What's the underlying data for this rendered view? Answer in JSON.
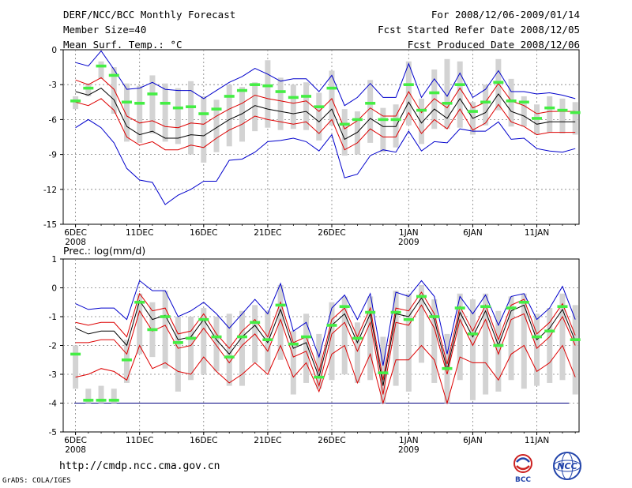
{
  "header": {
    "title": "DERF/NCC/BCC Monthly Forecast",
    "member_size": "Member Size=40",
    "variable_label": "Mean Surf. Temp.: °C",
    "forecast_range": "For 2008/12/06-2009/01/14",
    "started_refer": "Fcst Started Refer Date 2008/12/05",
    "produced_date": "Fcst Produced Date 2008/12/06"
  },
  "footer": {
    "url": "http://cmdp.ncc.cma.gov.cn",
    "credit": "GrADS: COLA/IGES",
    "logo_bcc": "BCC",
    "logo_ncc": "NCC"
  },
  "colors": {
    "box": "#d3d3d3",
    "green": "#44ee44",
    "black": "#000000",
    "red": "#dd0000",
    "blue": "#0000cc",
    "grid": "#808080"
  },
  "chart_data": [
    {
      "type": "line",
      "title": "Mean Surf. Temp.: °C",
      "ylabel": "°C",
      "ylim": [
        -15,
        0
      ],
      "yticks": [
        0,
        -3,
        -6,
        -9,
        -12,
        -15
      ],
      "xtick_labels": [
        {
          "day": 0,
          "label": "6DEC",
          "sub": "2008"
        },
        {
          "day": 5,
          "label": "11DEC",
          "sub": ""
        },
        {
          "day": 10,
          "label": "16DEC",
          "sub": ""
        },
        {
          "day": 15,
          "label": "21DEC",
          "sub": ""
        },
        {
          "day": 20,
          "label": "26DEC",
          "sub": ""
        },
        {
          "day": 26,
          "label": "1JAN",
          "sub": "2009"
        },
        {
          "day": 31,
          "label": "6JAN",
          "sub": ""
        },
        {
          "day": 36,
          "label": "11JAN",
          "sub": ""
        }
      ],
      "x_start_day": 0,
      "observed_green": [
        -4.4,
        -3.3,
        -1.4,
        -2.2,
        -4.5,
        -4.6,
        -3.8,
        -4.6,
        -5.0,
        -4.9,
        -5.5,
        -5.1,
        -4.0,
        -3.5,
        -3.0,
        -3.1,
        -3.6,
        -4.1,
        -4.0,
        -4.9,
        -3.3,
        -6.4,
        -6.0,
        -4.6,
        -6.0,
        -6.0,
        -3.0,
        -5.2,
        -3.7,
        -4.6,
        -3.0,
        -5.3,
        -4.5,
        -2.8,
        -4.4,
        -4.5,
        -5.9,
        -5.0,
        -5.2,
        -5.4
      ],
      "box_high": [
        -4.0,
        -2.9,
        -1.0,
        -1.5,
        -2.9,
        -3.1,
        -2.2,
        -2.9,
        -3.3,
        -2.7,
        -4.0,
        -4.3,
        -3.0,
        -3.2,
        -2.8,
        -0.9,
        -2.4,
        -3.0,
        -2.8,
        -3.7,
        -1.8,
        -5.1,
        -5.3,
        -2.6,
        -5.0,
        -4.7,
        -1.0,
        -4.2,
        -1.7,
        -0.8,
        -1.0,
        -4.5,
        -3.0,
        -0.8,
        -2.5,
        -4.0,
        -4.7,
        -4.0,
        -4.2,
        -4.5
      ],
      "box_low": [
        -5.1,
        -4.0,
        -2.5,
        -5.5,
        -7.9,
        -8.0,
        -7.2,
        -7.9,
        -8.1,
        -9.0,
        -9.7,
        -8.8,
        -8.3,
        -7.9,
        -7.0,
        -6.7,
        -6.9,
        -6.8,
        -6.9,
        -7.8,
        -6.5,
        -9.1,
        -9.0,
        -8.0,
        -8.8,
        -8.4,
        -6.5,
        -8.1,
        -6.8,
        -6.8,
        -6.7,
        -7.3,
        -6.5,
        -5.2,
        -6.6,
        -6.6,
        -7.3,
        -7.1,
        -7.2,
        -7.3
      ],
      "series": [
        {
          "name": "ensemble mean",
          "color": "black",
          "values": [
            -3.6,
            -3.9,
            -3.3,
            -4.3,
            -6.6,
            -7.3,
            -7.0,
            -7.6,
            -7.6,
            -7.3,
            -7.4,
            -6.7,
            -6.0,
            -5.5,
            -4.8,
            -5.1,
            -5.3,
            -5.5,
            -5.3,
            -6.2,
            -5.1,
            -7.7,
            -7.1,
            -5.9,
            -6.6,
            -6.6,
            -4.5,
            -6.3,
            -5.1,
            -5.9,
            -4.2,
            -5.9,
            -5.4,
            -3.8,
            -5.3,
            -5.7,
            -6.4,
            -6.2,
            -6.2,
            -6.2
          ]
        },
        {
          "name": "mean + 1 std",
          "color": "red",
          "values": [
            -2.6,
            -3.0,
            -2.4,
            -3.4,
            -5.7,
            -6.3,
            -6.1,
            -6.6,
            -6.7,
            -6.3,
            -6.4,
            -5.7,
            -5.1,
            -4.6,
            -3.9,
            -4.2,
            -4.4,
            -4.6,
            -4.4,
            -5.3,
            -4.2,
            -6.8,
            -6.1,
            -5.0,
            -5.7,
            -5.7,
            -3.6,
            -5.4,
            -4.2,
            -5.0,
            -3.3,
            -5.0,
            -4.5,
            -2.9,
            -4.4,
            -4.8,
            -5.5,
            -5.3,
            -5.3,
            -5.3
          ]
        },
        {
          "name": "mean - 1 std",
          "color": "red",
          "values": [
            -4.5,
            -4.8,
            -4.2,
            -5.2,
            -7.5,
            -8.2,
            -7.9,
            -8.6,
            -8.6,
            -8.2,
            -8.4,
            -7.6,
            -6.9,
            -6.4,
            -5.7,
            -6.0,
            -6.2,
            -6.4,
            -6.2,
            -7.2,
            -6.0,
            -8.6,
            -8.0,
            -6.8,
            -7.5,
            -7.5,
            -5.4,
            -7.2,
            -6.0,
            -6.8,
            -5.1,
            -6.9,
            -6.3,
            -4.7,
            -6.2,
            -6.6,
            -7.3,
            -7.1,
            -7.1,
            -7.1
          ]
        },
        {
          "name": "mean + 2 std",
          "color": "blue",
          "values": [
            -1.1,
            -1.4,
            -0.1,
            -1.7,
            -3.4,
            -3.3,
            -2.8,
            -3.4,
            -3.5,
            -3.5,
            -4.2,
            -3.5,
            -2.8,
            -2.3,
            -1.6,
            -2.1,
            -2.7,
            -2.5,
            -2.5,
            -3.6,
            -2.2,
            -4.8,
            -4.1,
            -2.9,
            -4.1,
            -4.1,
            -1.2,
            -4.1,
            -2.5,
            -4.0,
            -2.0,
            -4.1,
            -3.4,
            -1.8,
            -3.6,
            -3.6,
            -3.8,
            -3.7,
            -3.9,
            -4.2
          ]
        },
        {
          "name": "mean - 2 std",
          "color": "blue",
          "values": [
            -6.7,
            -6.0,
            -6.7,
            -8.0,
            -10.2,
            -11.2,
            -11.4,
            -13.3,
            -12.5,
            -12.0,
            -11.3,
            -11.3,
            -9.5,
            -9.4,
            -8.8,
            -7.9,
            -7.8,
            -7.6,
            -7.9,
            -8.7,
            -7.3,
            -11.0,
            -10.7,
            -9.1,
            -8.6,
            -8.8,
            -7.0,
            -8.7,
            -7.9,
            -8.0,
            -6.8,
            -7.0,
            -7.0,
            -6.2,
            -7.7,
            -7.6,
            -8.5,
            -8.7,
            -8.8,
            -8.5
          ]
        }
      ]
    },
    {
      "type": "line",
      "title": "Prec.: log(mm/d)",
      "ylabel": "log(mm/d)",
      "ylim": [
        -5,
        1
      ],
      "yticks": [
        1,
        0,
        -1,
        -2,
        -3,
        -4,
        -5
      ],
      "xtick_labels": [
        {
          "day": 0,
          "label": "6DEC",
          "sub": "2008"
        },
        {
          "day": 5,
          "label": "11DEC",
          "sub": ""
        },
        {
          "day": 10,
          "label": "16DEC",
          "sub": ""
        },
        {
          "day": 15,
          "label": "21DEC",
          "sub": ""
        },
        {
          "day": 20,
          "label": "26DEC",
          "sub": ""
        },
        {
          "day": 26,
          "label": "1JAN",
          "sub": "2009"
        },
        {
          "day": 31,
          "label": "6JAN",
          "sub": ""
        },
        {
          "day": 36,
          "label": "11JAN",
          "sub": ""
        }
      ],
      "x_start_day": 0,
      "baseline": -4,
      "observed_green": [
        -2.3,
        -3.9,
        -3.9,
        -3.9,
        -2.5,
        -0.5,
        -1.45,
        -1.0,
        -1.9,
        -1.75,
        -1.1,
        -1.7,
        -2.4,
        -1.7,
        -1.2,
        -1.8,
        -0.6,
        -1.95,
        -1.7,
        -3.1,
        -1.3,
        -0.65,
        -1.75,
        -0.85,
        -2.95,
        -0.85,
        -1.1,
        -0.3,
        -1.0,
        -2.8,
        -0.7,
        -1.6,
        -0.65,
        -2.0,
        -0.7,
        -0.5,
        -1.7,
        -1.5,
        -0.65,
        -1.8
      ],
      "box_high": [
        -2.0,
        -3.5,
        -3.4,
        -3.5,
        -1.8,
        -0.2,
        -0.5,
        -0.1,
        -1.0,
        -1.0,
        -0.7,
        -1.0,
        -0.9,
        -0.8,
        -0.6,
        -0.8,
        0.1,
        -1.5,
        -0.9,
        -1.6,
        -0.5,
        -0.3,
        -1.2,
        -0.3,
        -1.7,
        -0.1,
        -0.2,
        0.1,
        -0.4,
        -1.6,
        -0.2,
        -0.4,
        -0.2,
        -0.8,
        -0.3,
        -0.2,
        -0.9,
        -0.7,
        -0.2,
        -0.6
      ],
      "box_low": [
        -3.5,
        -4.0,
        -4.0,
        -4.0,
        -3.3,
        -2.3,
        -2.4,
        -2.8,
        -3.6,
        -3.2,
        -3.0,
        -2.9,
        -3.4,
        -3.4,
        -2.6,
        -2.9,
        -2.5,
        -3.7,
        -3.3,
        -3.5,
        -3.2,
        -3.0,
        -3.3,
        -3.2,
        -4.0,
        -3.4,
        -3.6,
        -2.6,
        -3.3,
        -4.0,
        -3.2,
        -3.9,
        -3.7,
        -3.6,
        -3.2,
        -3.5,
        -3.4,
        -3.3,
        -3.2,
        -3.7
      ],
      "series": [
        {
          "name": "ensemble mean",
          "color": "black",
          "values": [
            -1.4,
            -1.6,
            -1.5,
            -1.5,
            -2.0,
            -0.45,
            -1.1,
            -0.95,
            -1.8,
            -1.7,
            -1.1,
            -1.8,
            -2.3,
            -1.7,
            -1.3,
            -1.9,
            -0.75,
            -2.1,
            -1.9,
            -3.1,
            -1.3,
            -0.9,
            -1.9,
            -0.9,
            -3.4,
            -0.9,
            -1.0,
            -0.35,
            -1.1,
            -2.85,
            -0.85,
            -1.7,
            -0.8,
            -2.0,
            -0.8,
            -0.6,
            -1.8,
            -1.4,
            -0.75,
            -1.85
          ]
        },
        {
          "name": "mean + 1 std",
          "color": "red",
          "values": [
            -1.2,
            -1.3,
            -1.2,
            -1.2,
            -1.7,
            -0.2,
            -0.8,
            -0.7,
            -1.6,
            -1.5,
            -0.9,
            -1.6,
            -2.1,
            -1.5,
            -1.1,
            -1.7,
            -0.5,
            -1.9,
            -1.7,
            -2.9,
            -1.1,
            -0.7,
            -1.7,
            -0.7,
            -3.2,
            -0.7,
            -0.8,
            -0.15,
            -0.9,
            -2.65,
            -0.65,
            -1.5,
            -0.6,
            -1.8,
            -0.6,
            -0.4,
            -1.6,
            -1.2,
            -0.55,
            -1.65
          ]
        },
        {
          "name": "mean - 1 std",
          "color": "red",
          "values": [
            -1.9,
            -1.9,
            -1.8,
            -1.8,
            -2.3,
            -0.8,
            -1.5,
            -1.3,
            -2.1,
            -2.0,
            -1.4,
            -2.0,
            -2.6,
            -2.0,
            -1.6,
            -2.2,
            -1.1,
            -2.4,
            -2.2,
            -3.4,
            -1.6,
            -1.2,
            -2.2,
            -1.2,
            -3.7,
            -1.2,
            -1.3,
            -0.6,
            -1.4,
            -3.0,
            -1.1,
            -2.0,
            -1.1,
            -2.3,
            -1.1,
            -0.9,
            -2.1,
            -1.7,
            -1.0,
            -2.0
          ]
        },
        {
          "name": "mean - 2 std",
          "color": "red",
          "values": [
            -3.1,
            -3.0,
            -2.8,
            -2.9,
            -3.2,
            -2.0,
            -2.8,
            -2.6,
            -2.9,
            -3.0,
            -2.4,
            -2.9,
            -3.3,
            -3.0,
            -2.6,
            -3.0,
            -2.0,
            -3.1,
            -2.6,
            -3.6,
            -2.3,
            -2.0,
            -3.3,
            -2.3,
            -4.0,
            -2.5,
            -2.5,
            -2.0,
            -2.5,
            -4.0,
            -2.4,
            -2.6,
            -2.6,
            -3.2,
            -2.3,
            -2.0,
            -2.9,
            -2.6,
            -2.0,
            -3.1
          ]
        },
        {
          "name": "mean + 2 std",
          "color": "blue",
          "values": [
            -0.55,
            -0.75,
            -0.7,
            -0.7,
            -1.1,
            0.25,
            -0.1,
            -0.1,
            -1.0,
            -0.8,
            -0.5,
            -0.9,
            -1.4,
            -0.9,
            -0.4,
            -0.9,
            0.15,
            -1.5,
            -1.2,
            -2.4,
            -0.7,
            -0.25,
            -1.1,
            -0.2,
            -2.7,
            -0.15,
            -0.3,
            0.25,
            -0.3,
            -2.3,
            -0.3,
            -0.9,
            -0.25,
            -1.3,
            -0.3,
            -0.2,
            -1.1,
            -0.7,
            0.05,
            -1.1
          ]
        }
      ]
    }
  ]
}
